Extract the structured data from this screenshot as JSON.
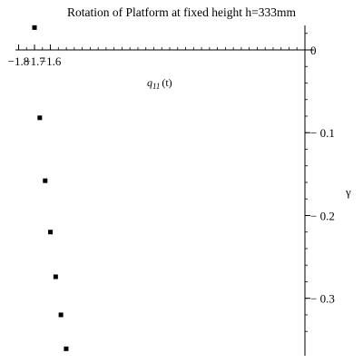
{
  "chart_data": {
    "type": "scatter",
    "title": "Rotation of Platform at fixed height h=333mm",
    "xlabel": "q11(t)",
    "xlabel_main": "q",
    "xlabel_sub": "11",
    "xlabel_arg": "(t)",
    "ylabel": "γ",
    "xlim": [
      -1.82,
      0.0
    ],
    "ylim": [
      -0.365,
      0.03
    ],
    "xticks": [
      -1.8,
      -1.7,
      -1.6
    ],
    "xtick_labels": [
      "−1.8",
      "−1.7",
      "−1.6"
    ],
    "yticks": [
      0,
      -0.1,
      -0.2,
      -0.3
    ],
    "ytick_labels": [
      "0",
      "− 0.1",
      "− 0.2",
      "− 0.3"
    ],
    "points": [
      {
        "x": -1.7,
        "y": 0.027
      },
      {
        "x": -1.667,
        "y": -0.082
      },
      {
        "x": -1.633,
        "y": -0.158
      },
      {
        "x": -1.6,
        "y": -0.22
      },
      {
        "x": -1.567,
        "y": -0.274
      },
      {
        "x": -1.534,
        "y": -0.32
      },
      {
        "x": -1.501,
        "y": -0.361
      }
    ],
    "grid": false,
    "marker": "square"
  }
}
